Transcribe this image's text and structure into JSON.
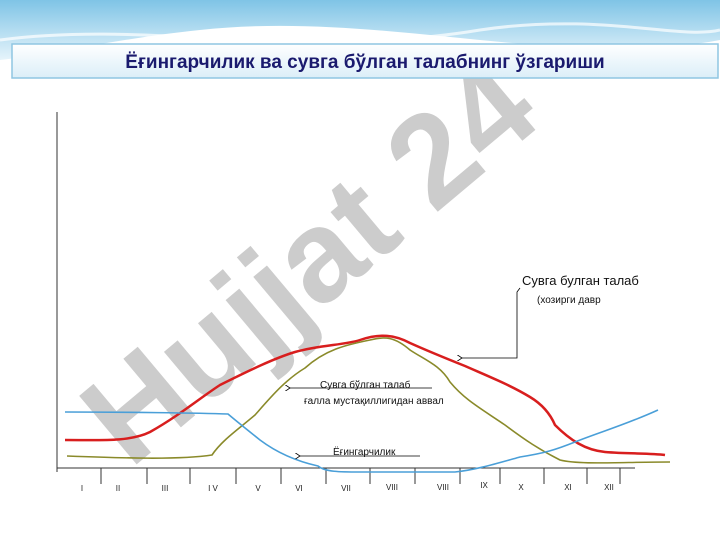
{
  "header": {
    "title": "Ёғингарчилик ва сувга бўлган талабнинг ўзгариши"
  },
  "watermark": "Hujjat 24",
  "labels": {
    "current_demand": "Сувга булган талаб",
    "current_period": "(хозирги давр",
    "past_demand": "Сувга бўлган талаб",
    "past_period": "ғалла мустақиллигидан аввал",
    "precipitation": "Ёғингарчилик"
  },
  "months": [
    "I",
    "II",
    "III",
    "I V",
    "V",
    "VI",
    "VII",
    "VIII",
    "VIII",
    "IX",
    "X",
    "XI",
    "XII"
  ]
}
